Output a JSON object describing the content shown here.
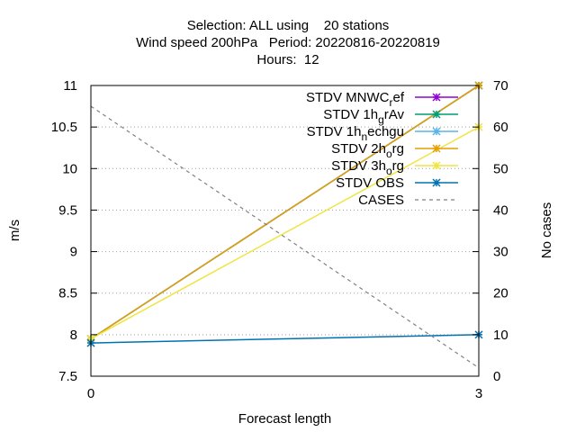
{
  "chart_data": {
    "type": "line",
    "title_lines": [
      "Selection: ALL using    20 stations",
      "Wind speed 200hPa   Period: 20220816-20220819",
      "Hours:  12"
    ],
    "xlabel": "Forecast length",
    "ylabel": "m/s",
    "y2label": "No cases",
    "x": [
      0,
      3
    ],
    "xlim": [
      0,
      3
    ],
    "ylim": [
      7.5,
      11
    ],
    "y2lim": [
      0,
      70
    ],
    "x_ticks": [
      "0",
      "3"
    ],
    "y_ticks": [
      "7.5",
      "8",
      "8.5",
      "9",
      "9.5",
      "10",
      "10.5",
      "11"
    ],
    "y2_ticks": [
      "0",
      "10",
      "20",
      "30",
      "40",
      "50",
      "60",
      "70"
    ],
    "grid": "horizontal dotted",
    "legend_position": "top-right",
    "series": [
      {
        "name": "STDV MNWC_ref",
        "label": "STDV MNWC",
        "sub": "r",
        "rest": "ef",
        "color": "#9400d3",
        "values": [
          7.95,
          11.0
        ],
        "axis": "y1",
        "style": "solid"
      },
      {
        "name": "STDV 1h_grAv",
        "label": "STDV 1h",
        "sub": "g",
        "rest": "rAv",
        "color": "#009e73",
        "values": [
          7.95,
          11.0
        ],
        "axis": "y1",
        "style": "solid"
      },
      {
        "name": "STDV 1h_nechgu",
        "label": "STDV 1h",
        "sub": "n",
        "rest": "echgu",
        "color": "#56b4e9",
        "values": [
          7.95,
          11.0
        ],
        "axis": "y1",
        "style": "solid"
      },
      {
        "name": "STDV 2h_org",
        "label": "STDV 2h",
        "sub": "o",
        "rest": "rg",
        "color": "#e69f00",
        "values": [
          7.95,
          11.0
        ],
        "axis": "y1",
        "style": "solid"
      },
      {
        "name": "STDV 3h_org",
        "label": "STDV 3h",
        "sub": "o",
        "rest": "rg",
        "color": "#f0e442",
        "values": [
          7.95,
          10.5
        ],
        "axis": "y1",
        "style": "solid"
      },
      {
        "name": "STDV OBS",
        "label": "STDV OBS",
        "sub": "",
        "rest": "",
        "color": "#0072b2",
        "values": [
          7.9,
          8.0
        ],
        "axis": "y1",
        "style": "solid"
      },
      {
        "name": "CASES",
        "label": "CASES",
        "sub": "",
        "rest": "",
        "color": "#808080",
        "values": [
          65,
          2
        ],
        "axis": "y2",
        "style": "dashed"
      }
    ]
  }
}
